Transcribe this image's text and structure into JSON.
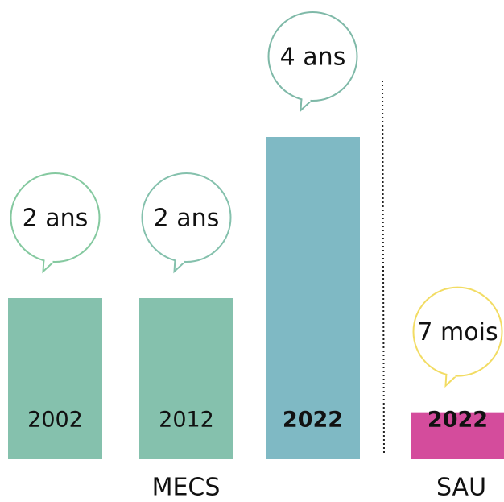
{
  "chart_data": {
    "type": "bar",
    "categories": [
      "2002",
      "2012",
      "2022",
      "2022"
    ],
    "values": [
      24,
      24,
      48,
      7
    ],
    "value_labels": [
      "2 ans",
      "2 ans",
      "4 ans",
      "7 mois"
    ],
    "colors": [
      "#85c1ad",
      "#85c1ad",
      "#7fb9c4",
      "#d44c9c"
    ],
    "bubble_colors": [
      "#85c9a0",
      "#85c1ad",
      "#7fb9a8",
      "#f2dc63"
    ],
    "bold": [
      false,
      false,
      true,
      true
    ],
    "groups": [
      "MECS",
      "SAU"
    ]
  }
}
